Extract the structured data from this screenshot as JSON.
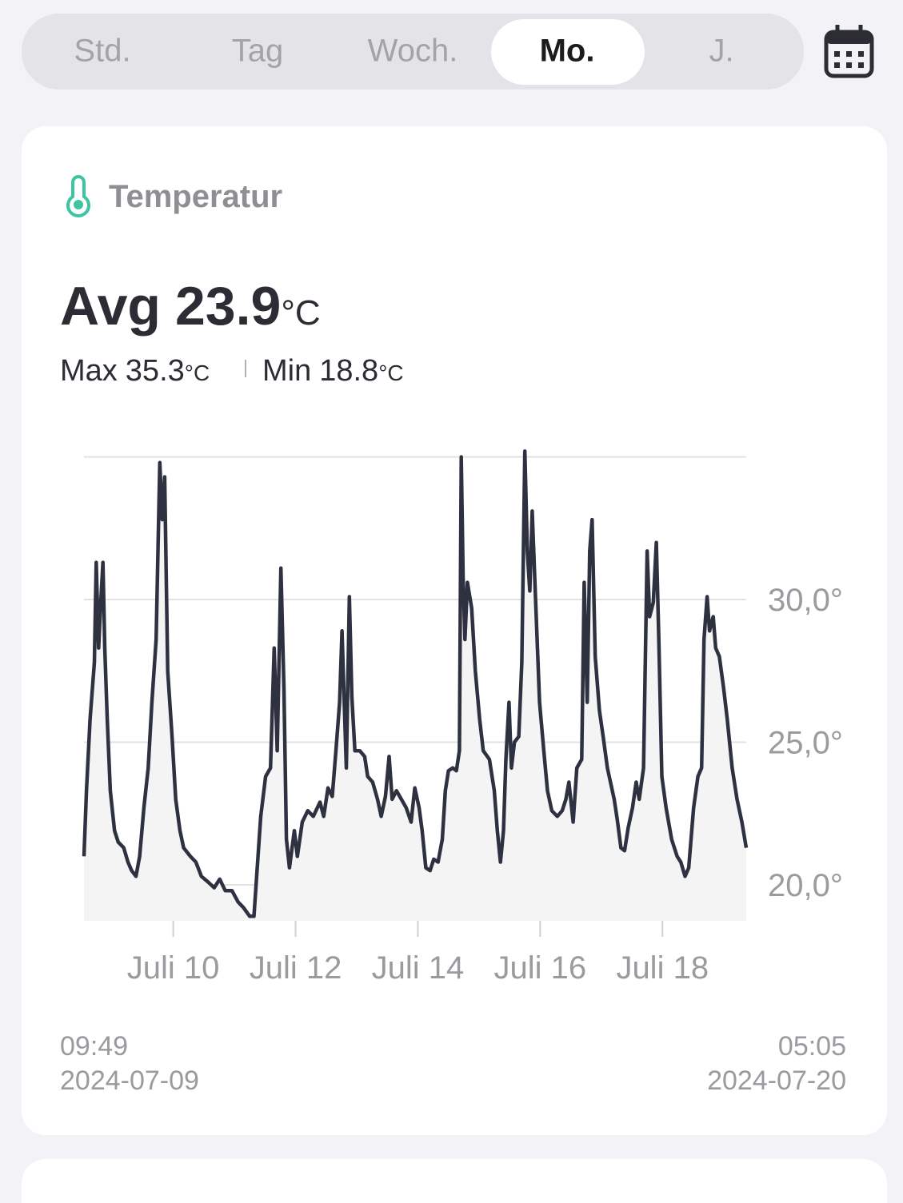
{
  "tabs": {
    "items": [
      "Std.",
      "Tag",
      "Woch.",
      "Mo.",
      "J."
    ],
    "active": 3
  },
  "card": {
    "title": "Temperatur",
    "avg": {
      "label": "Avg",
      "value": 23.9,
      "unit": "°C"
    },
    "max": {
      "label": "Max",
      "value": 35.3,
      "unit": "°C"
    },
    "min": {
      "label": "Min",
      "value": 18.8,
      "unit": "°C"
    },
    "start": {
      "time": "09:49",
      "date": "2024-07-09"
    },
    "end": {
      "time": "05:05",
      "date": "2024-07-20"
    }
  },
  "chart_data": {
    "type": "line",
    "color": "#2e3140",
    "area_color": "#f4f4f5",
    "xlim": [
      8.54,
      19.37
    ],
    "ylim": [
      18.74,
      35.24
    ],
    "xticks": [
      {
        "value": 10,
        "label": "Juli 10"
      },
      {
        "value": 12,
        "label": "Juli 12"
      },
      {
        "value": 14,
        "label": "Juli 14"
      },
      {
        "value": 16,
        "label": "Juli 16"
      },
      {
        "value": 18,
        "label": "Juli 18"
      }
    ],
    "yticks": [
      {
        "value": 20,
        "label": "20,0°"
      },
      {
        "value": 25,
        "label": "25,0°"
      },
      {
        "value": 30,
        "label": "30,0°"
      }
    ],
    "ygrid": [
      20,
      25,
      30,
      35
    ],
    "x": [
      8.54,
      8.58,
      8.64,
      8.71,
      8.74,
      8.78,
      8.81,
      8.85,
      8.88,
      8.92,
      8.97,
      9.04,
      9.1,
      9.19,
      9.26,
      9.32,
      9.39,
      9.45,
      9.52,
      9.59,
      9.65,
      9.72,
      9.78,
      9.82,
      9.86,
      9.91,
      9.98,
      10.04,
      10.11,
      10.17,
      10.28,
      10.37,
      10.46,
      10.57,
      10.67,
      10.76,
      10.85,
      10.96,
      11.06,
      11.15,
      11.25,
      11.32,
      11.38,
      11.43,
      11.51,
      11.59,
      11.65,
      11.7,
      11.76,
      11.81,
      11.85,
      11.9,
      11.98,
      12.03,
      12.11,
      12.2,
      12.29,
      12.4,
      12.46,
      12.53,
      12.6,
      12.66,
      12.72,
      12.76,
      12.83,
      12.88,
      12.92,
      12.97,
      13.05,
      13.13,
      13.18,
      13.26,
      13.34,
      13.4,
      13.47,
      13.53,
      13.58,
      13.65,
      13.73,
      13.81,
      13.89,
      13.95,
      14.02,
      14.07,
      14.13,
      14.2,
      14.26,
      14.33,
      14.4,
      14.45,
      14.5,
      14.57,
      14.63,
      14.68,
      14.71,
      14.74,
      14.77,
      14.81,
      14.88,
      14.94,
      15.01,
      15.07,
      15.17,
      15.25,
      15.3,
      15.35,
      15.4,
      15.44,
      15.49,
      15.53,
      15.58,
      15.65,
      15.7,
      15.75,
      15.79,
      15.83,
      15.87,
      15.92,
      15.99,
      16.06,
      16.12,
      16.19,
      16.28,
      16.36,
      16.42,
      16.47,
      16.54,
      16.6,
      16.68,
      16.72,
      16.77,
      16.81,
      16.85,
      16.9,
      16.97,
      17.03,
      17.1,
      17.21,
      17.26,
      17.32,
      17.38,
      17.44,
      17.51,
      17.57,
      17.62,
      17.69,
      17.75,
      17.79,
      17.85,
      17.9,
      17.94,
      17.99,
      18.06,
      18.15,
      18.24,
      18.3,
      18.37,
      18.43,
      18.51,
      18.58,
      18.64,
      18.68,
      18.73,
      18.77,
      18.83,
      18.87,
      18.93,
      19.0,
      19.06,
      19.14,
      19.22,
      19.3,
      19.37
    ],
    "values": [
      21.0,
      23.3,
      25.8,
      27.8,
      31.3,
      28.3,
      29.7,
      31.3,
      28.3,
      25.8,
      23.3,
      21.9,
      21.5,
      21.3,
      20.8,
      20.5,
      20.3,
      21.0,
      22.7,
      24.1,
      26.4,
      28.6,
      34.8,
      32.8,
      34.3,
      27.5,
      25.2,
      23.0,
      21.9,
      21.3,
      21.0,
      20.8,
      20.3,
      20.1,
      19.9,
      20.2,
      19.8,
      19.8,
      19.4,
      19.2,
      18.9,
      18.9,
      20.8,
      22.4,
      23.8,
      24.1,
      28.3,
      24.7,
      31.1,
      26.9,
      21.6,
      20.6,
      21.9,
      21.0,
      22.2,
      22.6,
      22.4,
      22.9,
      22.4,
      23.4,
      23.1,
      24.7,
      26.4,
      28.9,
      24.1,
      30.1,
      26.6,
      24.7,
      24.7,
      24.5,
      23.8,
      23.6,
      23.0,
      22.4,
      23.1,
      24.5,
      23.0,
      23.3,
      23.0,
      22.7,
      22.2,
      23.4,
      22.7,
      21.9,
      20.6,
      20.5,
      20.9,
      20.8,
      21.6,
      23.3,
      24.0,
      24.1,
      24.0,
      24.7,
      35.0,
      30.8,
      28.6,
      30.6,
      29.7,
      27.5,
      25.8,
      24.7,
      24.4,
      23.3,
      21.9,
      20.8,
      21.9,
      24.4,
      26.4,
      24.1,
      25.0,
      25.2,
      27.8,
      35.2,
      31.7,
      30.3,
      33.1,
      30.3,
      26.4,
      24.7,
      23.3,
      22.6,
      22.4,
      22.6,
      23.0,
      23.6,
      22.2,
      24.1,
      24.4,
      30.6,
      26.4,
      31.7,
      32.8,
      28.0,
      26.1,
      25.2,
      24.1,
      23.0,
      22.3,
      21.3,
      21.2,
      22.0,
      22.7,
      23.6,
      23.0,
      24.1,
      31.7,
      29.4,
      29.9,
      32.0,
      28.6,
      23.8,
      22.7,
      21.6,
      21.0,
      20.8,
      20.3,
      20.6,
      22.7,
      23.8,
      24.1,
      28.6,
      30.1,
      28.9,
      29.4,
      28.3,
      28.0,
      26.9,
      25.8,
      24.1,
      23.0,
      22.2,
      21.3
    ]
  }
}
